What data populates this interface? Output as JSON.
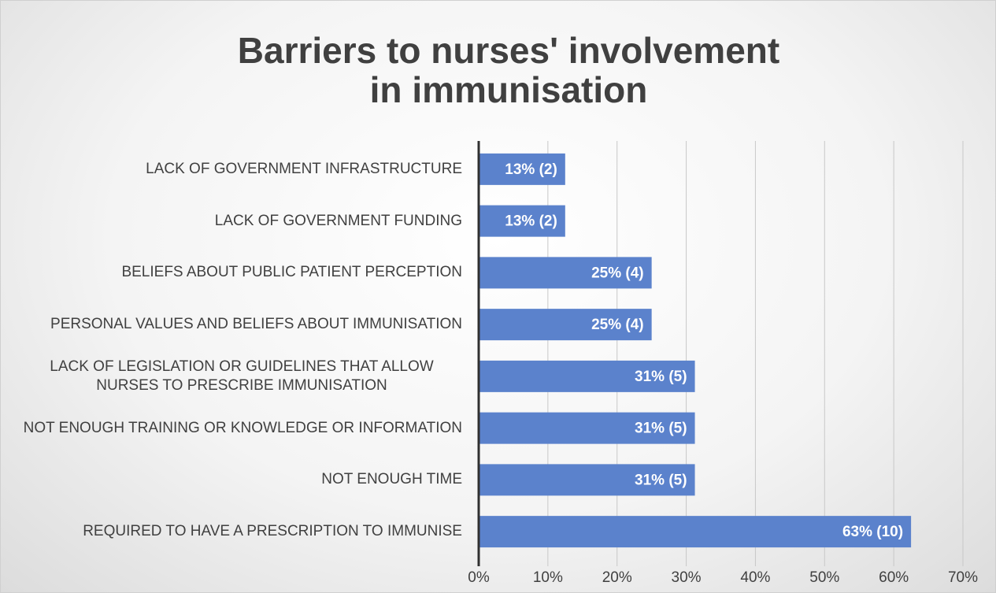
{
  "chart_data": {
    "type": "bar",
    "orientation": "horizontal",
    "title": "Barriers to nurses' involvement in immunisation",
    "categories": [
      "LACK OF GOVERNMENT INFRASTRUCTURE",
      "LACK OF GOVERNMENT FUNDING",
      "BELIEFS ABOUT PUBLIC PATIENT PERCEPTION",
      "PERSONAL VALUES AND BELIEFS ABOUT IMMUNISATION",
      "LACK OF LEGISLATION OR GUIDELINES THAT ALLOW NURSES TO PRESCRIBE IMMUNISATION",
      "NOT ENOUGH TRAINING OR KNOWLEDGE OR INFORMATION",
      "NOT ENOUGH TIME",
      "REQUIRED TO HAVE A PRESCRIPTION TO IMMUNISE"
    ],
    "values": [
      12.5,
      12.5,
      25,
      25,
      31.25,
      31.25,
      31.25,
      62.5
    ],
    "value_labels": [
      "13% (2)",
      "13% (2)",
      "25% (4)",
      "25% (4)",
      "31% (5)",
      "31% (5)",
      "31% (5)",
      "63% (10)"
    ],
    "color": "#5b82cc",
    "xlim": [
      0,
      70
    ],
    "xticks": [
      {
        "value": 0,
        "label": "0%"
      },
      {
        "value": 10,
        "label": "10%"
      },
      {
        "value": 20,
        "label": "20%"
      },
      {
        "value": 30,
        "label": "30%"
      },
      {
        "value": 40,
        "label": "40%"
      },
      {
        "value": 50,
        "label": "50%"
      },
      {
        "value": 60,
        "label": "60%"
      },
      {
        "value": 70,
        "label": "70%"
      }
    ],
    "grid": true
  }
}
